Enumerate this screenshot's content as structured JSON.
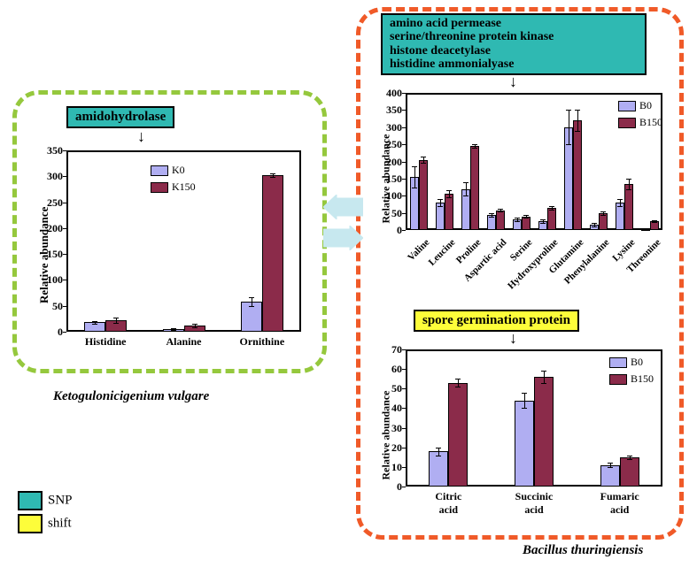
{
  "colors": {
    "snp_bg": "#2fb9b2",
    "shift_bg": "#fdfd3a",
    "bar_a": "#b0aef2",
    "bar_b": "#8b2b4a",
    "green_dash": "#95c83d",
    "orange_dash": "#f05a28",
    "arrow_fill": "#c7e8ef"
  },
  "left_box": {
    "title": "amidohydrolase",
    "species": "Ketogulonicigenium vulgare",
    "chart": {
      "type": "bar",
      "ylabel": "Relative abundance",
      "ylim": [
        0,
        350
      ],
      "ytick_step": 50,
      "categories": [
        "Histidine",
        "Alanine",
        "Ornithine"
      ],
      "series": [
        {
          "name": "K0",
          "color": "#b0aef2",
          "values": [
            18,
            5,
            58
          ],
          "err": [
            3,
            2,
            8
          ]
        },
        {
          "name": "K150",
          "color": "#8b2b4a",
          "values": [
            22,
            12,
            302
          ],
          "err": [
            5,
            3,
            4
          ]
        }
      ]
    }
  },
  "right_top": {
    "title_lines": [
      "amino acid permease",
      "serine/threonine protein kinase",
      "histone deacetylase",
      "histidine ammonialyase"
    ],
    "chart": {
      "type": "bar",
      "ylabel": "Relative abundance",
      "ylim": [
        0,
        400
      ],
      "ytick_step": 50,
      "categories": [
        "Valine",
        "Leucine",
        "Proline",
        "Aspartic acid",
        "Serine",
        "Hydroxyproline",
        "Glutamine",
        "Phenylalanine",
        "Lysine",
        "Threonine"
      ],
      "series": [
        {
          "name": "B0",
          "color": "#b0aef2",
          "values": [
            155,
            80,
            120,
            45,
            30,
            25,
            300,
            15,
            80,
            2
          ],
          "err": [
            30,
            10,
            20,
            5,
            5,
            5,
            50,
            5,
            10,
            2
          ]
        },
        {
          "name": "B150",
          "color": "#8b2b4a",
          "values": [
            205,
            105,
            245,
            58,
            40,
            65,
            320,
            50,
            135,
            25
          ],
          "err": [
            10,
            10,
            5,
            5,
            5,
            5,
            30,
            5,
            15,
            3
          ]
        }
      ]
    }
  },
  "right_bottom": {
    "title": "spore germination protein",
    "species": "Bacillus thuringiensis",
    "chart": {
      "type": "bar",
      "ylabel": "Relative abundance",
      "ylim": [
        0,
        70
      ],
      "ytick_step": 10,
      "categories": [
        "Citric\nacid",
        "Succinic\nacid",
        "Fumaric\nacid"
      ],
      "series": [
        {
          "name": "B0",
          "color": "#b0aef2",
          "values": [
            18,
            44,
            11
          ],
          "err": [
            2,
            4,
            1
          ]
        },
        {
          "name": "B150",
          "color": "#8b2b4a",
          "values": [
            53,
            56,
            15
          ],
          "err": [
            2,
            3,
            1
          ]
        }
      ]
    }
  },
  "key": {
    "snp": "SNP",
    "shift": "shift"
  }
}
